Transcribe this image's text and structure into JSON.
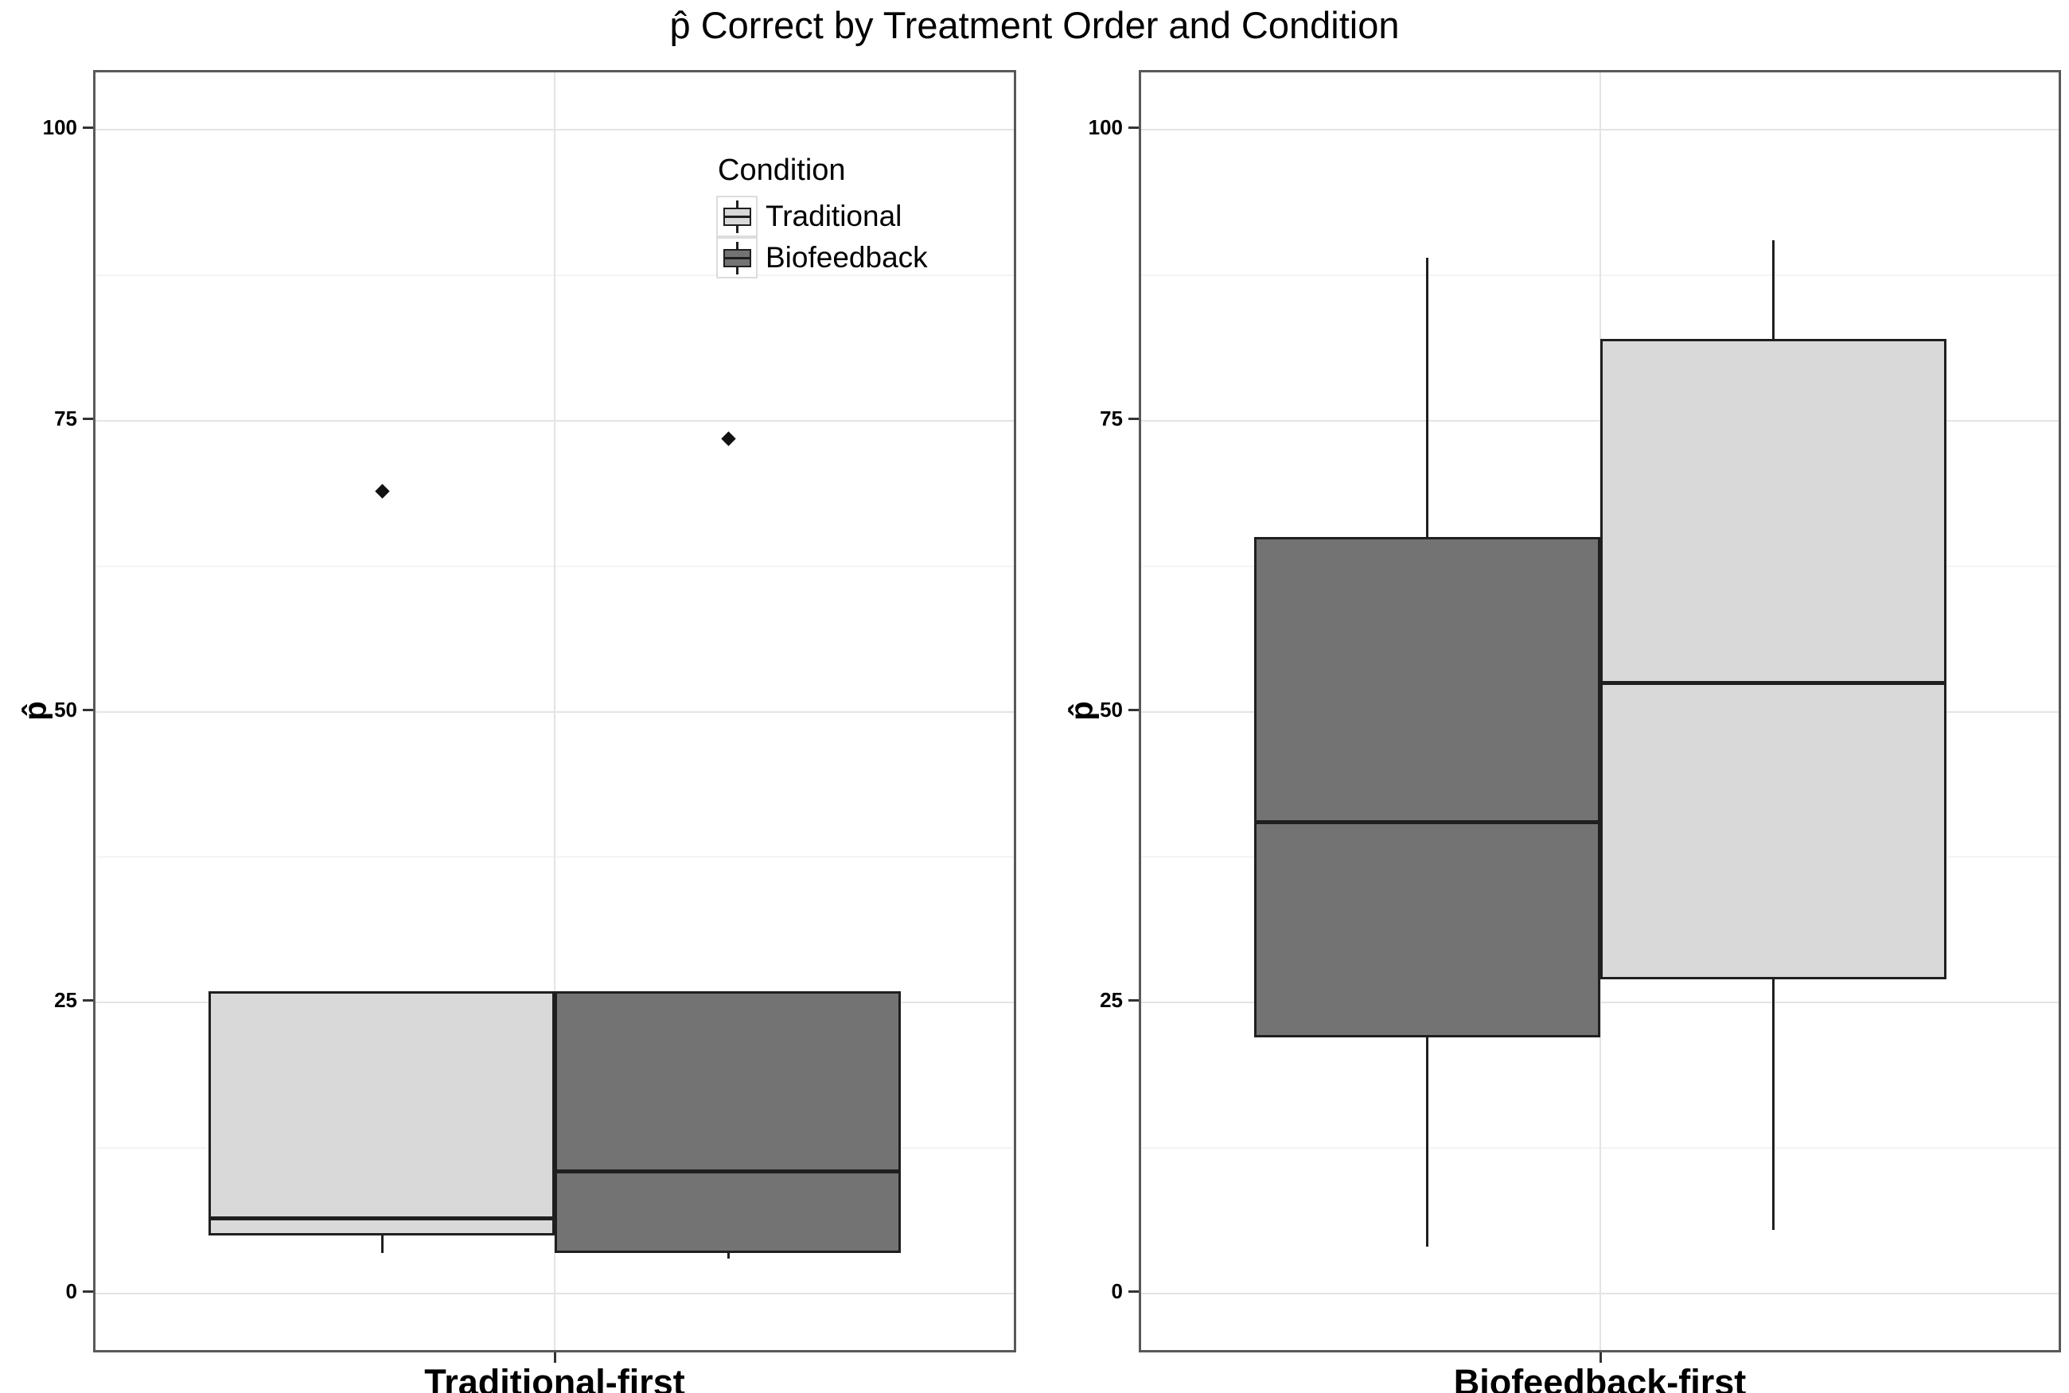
{
  "title": "p̂ Correct by Treatment Order and Condition",
  "y_axis": {
    "label": "p̂",
    "ticks": [
      0,
      25,
      50,
      75,
      100
    ],
    "minor_ticks": [
      12.5,
      37.5,
      62.5,
      87.5
    ],
    "range": [
      -5,
      105
    ]
  },
  "legend": {
    "title": "Condition",
    "entries": [
      {
        "label": "Traditional",
        "color": "#d9d9d9"
      },
      {
        "label": "Biofeedback",
        "color": "#737373"
      }
    ]
  },
  "colors": {
    "traditional_fill": "#d9d9d9",
    "biofeedback_fill": "#737373",
    "box_stroke": "#1f1f1f",
    "panel_border": "#595959",
    "grid_major": "#e4e4e4",
    "grid_minor": "#f4f4f4"
  },
  "chart_data": [
    {
      "type": "boxplot",
      "panel": "Traditional-first",
      "series": [
        {
          "name": "Traditional",
          "color": "#d9d9d9",
          "min": 3.5,
          "q1": 5,
          "median": 6.5,
          "q3": 26,
          "max": 26,
          "outliers": [
            69
          ]
        },
        {
          "name": "Biofeedback",
          "color": "#737373",
          "min": 3,
          "q1": 3.5,
          "median": 10.5,
          "q3": 26,
          "max": 26,
          "outliers": [
            73.5
          ]
        }
      ]
    },
    {
      "type": "boxplot",
      "panel": "Biofeedback-first",
      "series": [
        {
          "name": "Biofeedback",
          "color": "#737373",
          "min": 4,
          "q1": 22,
          "median": 40.5,
          "q3": 65,
          "max": 89,
          "outliers": []
        },
        {
          "name": "Traditional",
          "color": "#d9d9d9",
          "min": 5.5,
          "q1": 27,
          "median": 52.5,
          "q3": 82,
          "max": 90.5,
          "outliers": []
        }
      ]
    }
  ]
}
